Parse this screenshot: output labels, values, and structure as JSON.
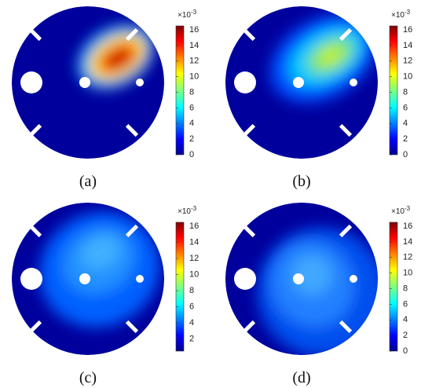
{
  "panels": [
    {
      "label": "(a)",
      "colorbar": {
        "scale": {
          "base": "×10",
          "exponent": "-3"
        },
        "range": [
          0,
          16.5
        ],
        "ticks": [
          0,
          2,
          4,
          6,
          8,
          10,
          12,
          14,
          16
        ]
      }
    },
    {
      "label": "(b)",
      "colorbar": {
        "scale": {
          "base": "×10",
          "exponent": "-3"
        },
        "range": [
          0,
          16.5
        ],
        "ticks": [
          0,
          2,
          4,
          6,
          8,
          10,
          12,
          14,
          16
        ]
      }
    },
    {
      "label": "(c)",
      "colorbar": {
        "scale": {
          "base": "×10",
          "exponent": "-3"
        },
        "range": [
          0.5,
          16.5
        ],
        "ticks": [
          2,
          4,
          6,
          8,
          10,
          12,
          14,
          16
        ]
      }
    },
    {
      "label": "(d)",
      "colorbar": {
        "scale": {
          "base": "×10",
          "exponent": "-3"
        },
        "range": [
          0,
          16.5
        ],
        "ticks": [
          0,
          2,
          4,
          6,
          8,
          10,
          12,
          14,
          16
        ]
      }
    }
  ]
}
